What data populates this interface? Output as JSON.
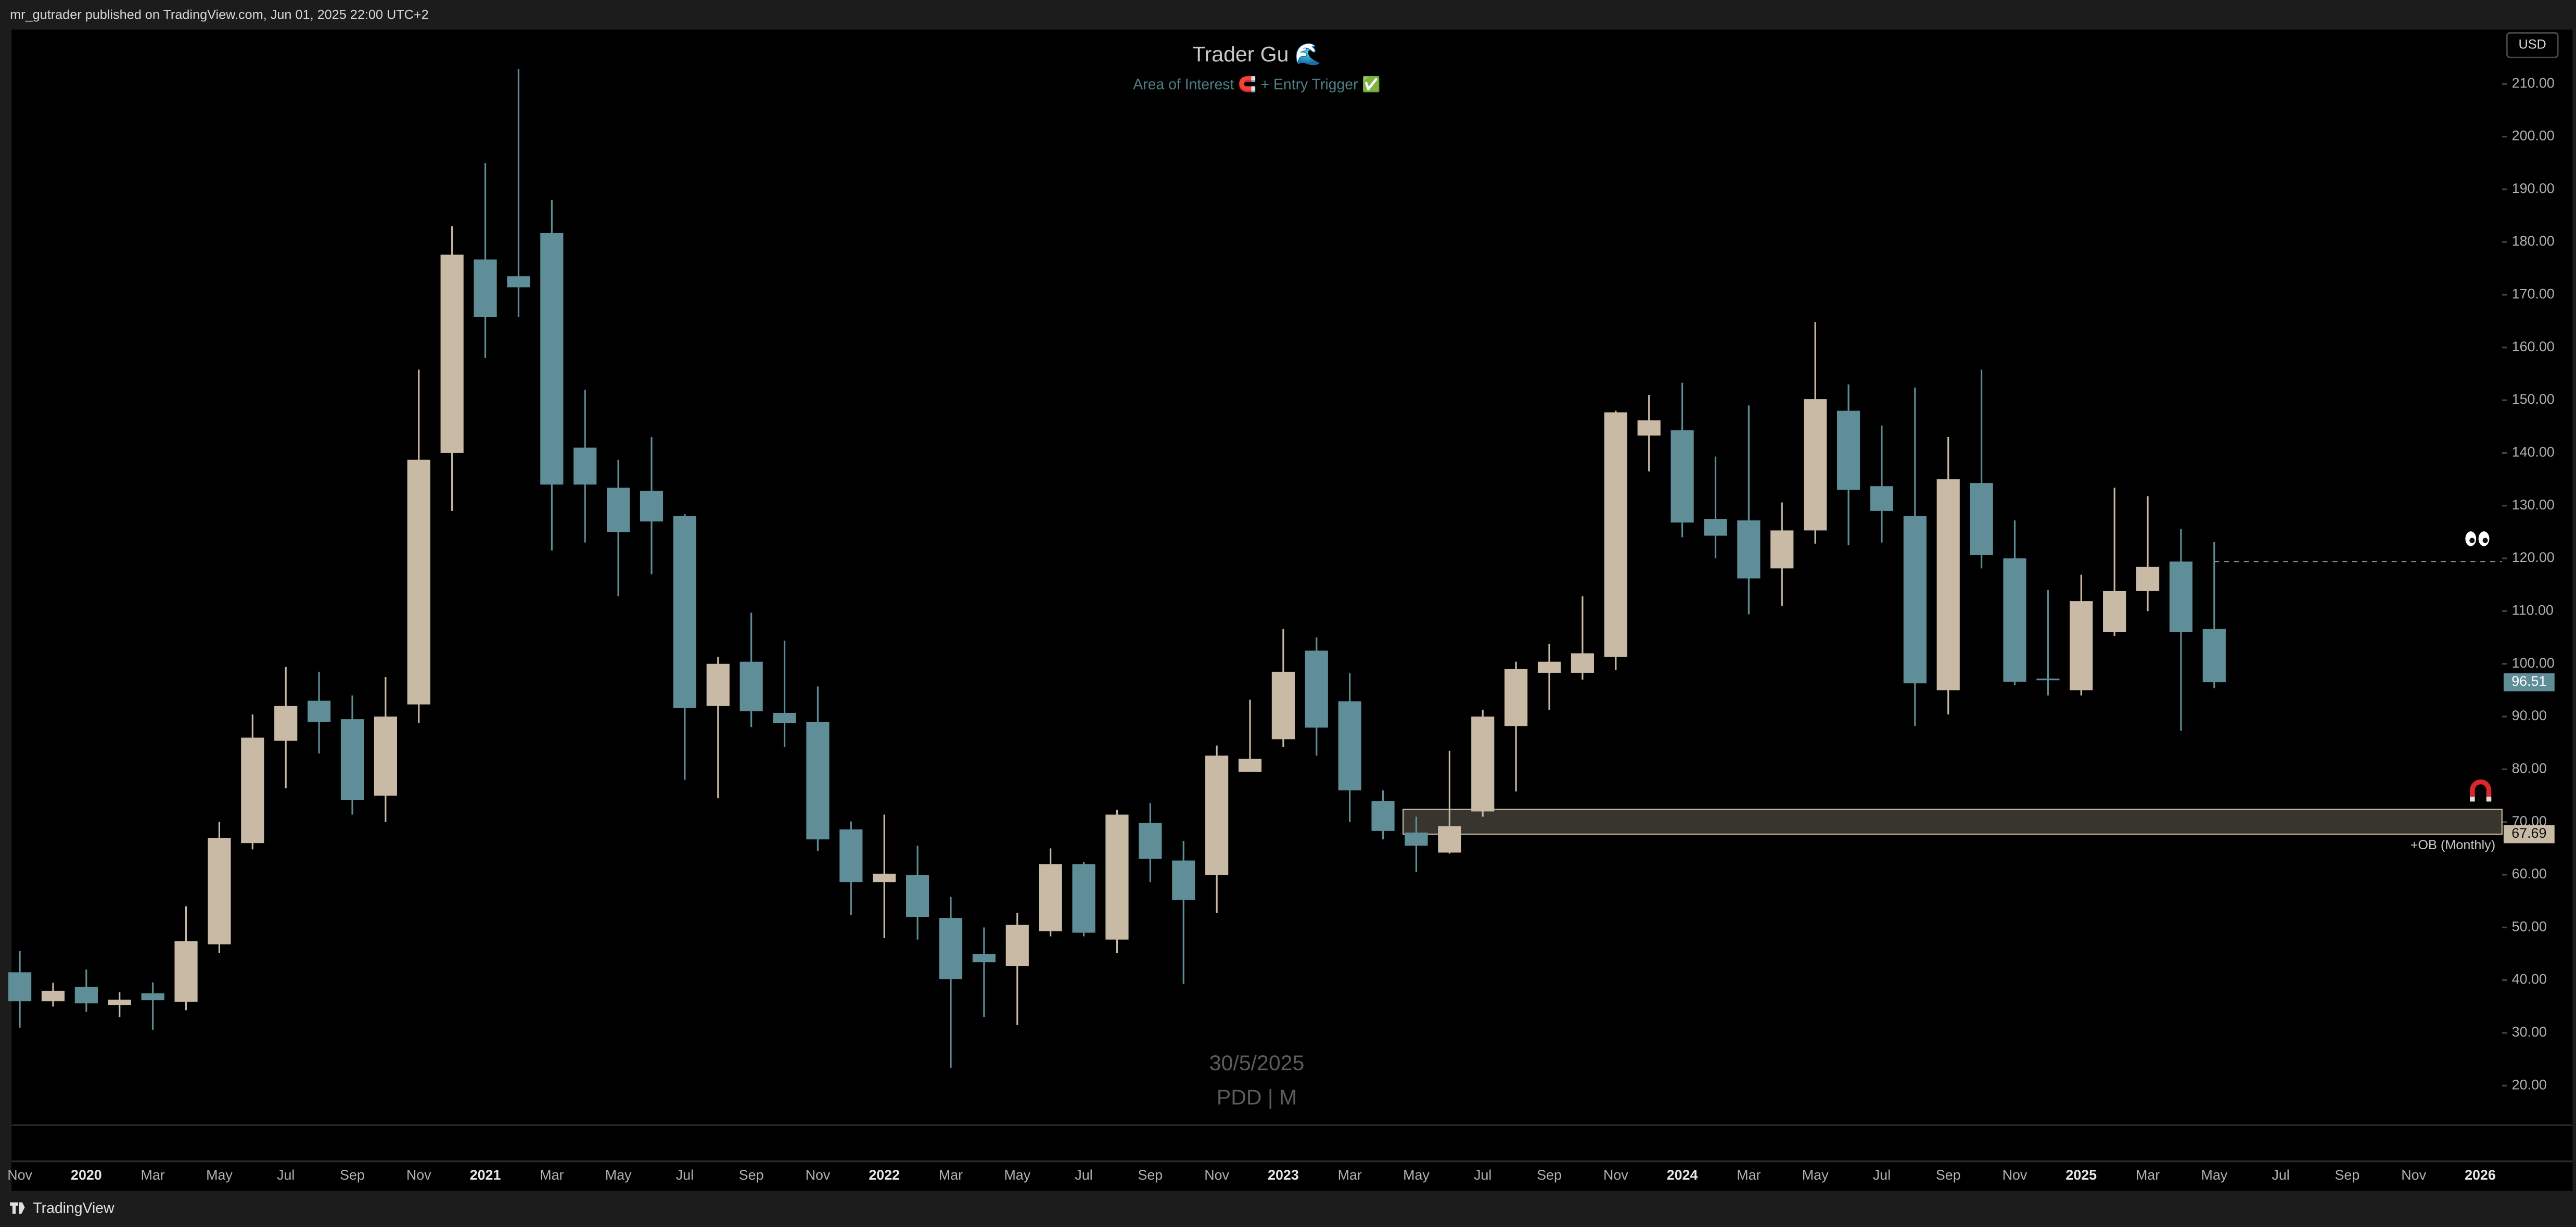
{
  "header": {
    "text": "mr_gutrader published on TradingView.com, Jun 01, 2025 22:00 UTC+2",
    "currency": "USD",
    "brand": "TradingView"
  },
  "chart_data": {
    "type": "candlestick",
    "title": "Trader Gu 🌊",
    "subtitle": "Area of Interest 🧲 + Entry Trigger ✅",
    "watermark": [
      "30/5/2025",
      "PDD | M"
    ],
    "categories": [
      "Nov",
      null,
      "2020",
      null,
      "Mar",
      null,
      "May",
      null,
      "Jul",
      null,
      "Sep",
      null,
      "Nov",
      null,
      "2021",
      null,
      "Mar",
      null,
      "May",
      null,
      "Jul",
      null,
      "Sep",
      null,
      "Nov",
      null,
      "2022",
      null,
      "Mar",
      null,
      "May",
      null,
      "Jul",
      null,
      "Sep",
      null,
      "Nov",
      null,
      "2023",
      null,
      "Mar",
      null,
      "May",
      null,
      "Jul",
      null,
      "Sep",
      null,
      "Nov",
      null,
      "2024",
      null,
      "Mar",
      null,
      "May",
      null,
      "Jul",
      null,
      "Sep",
      null,
      "Nov",
      null,
      "2025",
      null,
      "Mar",
      null,
      "May",
      null,
      "Jul",
      null,
      "Sep",
      null,
      "Nov",
      null,
      "2026"
    ],
    "open": [
      41.5,
      36,
      38.7,
      35.3,
      37.5,
      35.9,
      46.8,
      66,
      85.4,
      93,
      89.5,
      75,
      92.3,
      140,
      176.7,
      173.5,
      181.7,
      141,
      133.4,
      132.8,
      128,
      92,
      100.4,
      90.7,
      89,
      68.6,
      58.6,
      59.9,
      51.8,
      45,
      42.7,
      49.3,
      62,
      47.7,
      69.8,
      62.7,
      59.9,
      79.5,
      85.7,
      102.5,
      92.9,
      74,
      68,
      64.2,
      72,
      88.2,
      98.3,
      98.3,
      101.3,
      143.3,
      144.3,
      127.5,
      127.2,
      118.1,
      125.3,
      148,
      133.7,
      128,
      95,
      134.3,
      120,
      97.2,
      95,
      106,
      113.8,
      119.4,
      106.6,
      null,
      null,
      null,
      null,
      null,
      null,
      null,
      null
    ],
    "high": [
      45.5,
      39.5,
      42,
      37.7,
      39.6,
      54,
      70,
      90.4,
      99.4,
      98.5,
      94,
      97.5,
      155.8,
      183,
      195,
      212.8,
      188,
      152,
      138.7,
      143,
      128.4,
      101.3,
      109.7,
      104.4,
      95.7,
      70.1,
      71.4,
      65.5,
      55.8,
      50,
      52.7,
      65,
      62.4,
      72.3,
      73.6,
      66.4,
      84.5,
      93.2,
      106.6,
      105,
      98.2,
      76,
      71,
      83.5,
      91.3,
      100.4,
      103.8,
      112.8,
      148,
      151,
      153.3,
      139.3,
      149,
      130.6,
      164.8,
      153,
      145.2,
      152.4,
      143,
      155.8,
      127.2,
      114,
      116.9,
      133.4,
      131.8,
      125.6,
      123.1,
      null,
      null,
      null,
      null,
      null,
      null,
      null,
      null
    ],
    "low": [
      31,
      35,
      34,
      33,
      30.6,
      34.3,
      45.2,
      64.8,
      76.4,
      83,
      71.4,
      70,
      88.8,
      129,
      158,
      165.8,
      121.5,
      123,
      112.8,
      117,
      78,
      74.5,
      88,
      84.2,
      64.5,
      52.4,
      48,
      47.7,
      23.4,
      33,
      31.5,
      48.3,
      48.3,
      45.2,
      58.6,
      39.3,
      52.7,
      79.5,
      84.2,
      82.6,
      70,
      66.7,
      60.5,
      64,
      71,
      75.8,
      91.3,
      97,
      98.8,
      136.5,
      124,
      120,
      109.4,
      111,
      122.8,
      122.5,
      123,
      88.2,
      90.4,
      118.1,
      96,
      94,
      94,
      105.3,
      110,
      87.3,
      95.4,
      null,
      null,
      null,
      null,
      null,
      null,
      null,
      null
    ],
    "close": [
      36,
      38,
      35.6,
      36.3,
      36.2,
      47.4,
      67,
      86,
      92,
      89,
      74.2,
      90,
      138.7,
      177.6,
      165.8,
      171.4,
      134,
      134,
      125,
      127,
      91.6,
      100,
      91,
      88.8,
      66.7,
      58.6,
      60.2,
      52,
      40.2,
      43.4,
      50.5,
      62,
      49,
      71.4,
      63,
      55.2,
      82.6,
      82,
      98.5,
      87.9,
      76,
      68.3,
      65.5,
      69.2,
      90,
      99,
      100.4,
      102,
      147.7,
      146.2,
      126.8,
      124.3,
      116.2,
      125.3,
      150.2,
      133,
      129,
      96.3,
      135,
      120.6,
      96.6,
      96.9,
      111.9,
      113.8,
      118.4,
      106,
      96.51,
      null,
      null,
      null,
      null,
      null,
      null,
      null,
      null
    ],
    "up_color": "#c8baa4",
    "down_color": "#5f8d98",
    "ylim": [
      12.5,
      220.3
    ],
    "yticks": [
      {
        "value": 20,
        "label": "20.00"
      },
      {
        "value": 30,
        "label": "30.00"
      },
      {
        "value": 40,
        "label": "40.00"
      },
      {
        "value": 50,
        "label": "50.00"
      },
      {
        "value": 60,
        "label": "60.00"
      },
      {
        "value": 70,
        "label": "70.00"
      },
      {
        "value": 80,
        "label": "80.00"
      },
      {
        "value": 90,
        "label": "90.00"
      },
      {
        "value": 100,
        "label": "100.00"
      },
      {
        "value": 110,
        "label": "110.00"
      },
      {
        "value": 120,
        "label": "120.00"
      },
      {
        "value": 130,
        "label": "130.00"
      },
      {
        "value": 140,
        "label": "140.00"
      },
      {
        "value": 150,
        "label": "150.00"
      },
      {
        "value": 160,
        "label": "160.00"
      },
      {
        "value": 170,
        "label": "170.00"
      },
      {
        "value": 180,
        "label": "180.00"
      },
      {
        "value": 190,
        "label": "190.00"
      },
      {
        "value": 200,
        "label": "200.00"
      },
      {
        "value": 210,
        "label": "210.00"
      }
    ],
    "grid": false,
    "last_price": 96.51,
    "zone": {
      "top": 72.4,
      "bottom": 67.69,
      "label": "+OB (Monthly)"
    },
    "hline": 119.4
  }
}
